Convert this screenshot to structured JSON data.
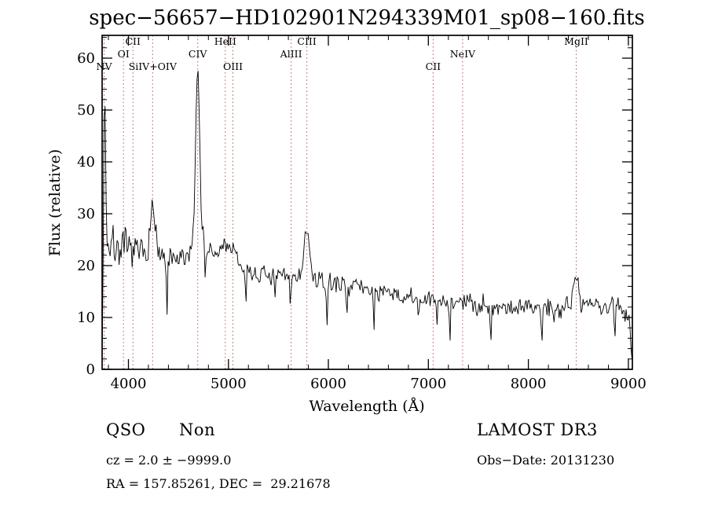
{
  "title": "spec−56657−HD102901N294339M01_sp08−160.fits",
  "annotations": {
    "object_class": "QSO",
    "object_subclass": "Non",
    "survey": "LAMOST DR3",
    "cz_line": "cz = 2.0 ± −9999.0",
    "obs_date": "Obs−Date: 20131230",
    "radec_line": "RA = 157.85261, DEC =  29.21678"
  },
  "chart_data": {
    "type": "line",
    "title": "spec−56657−HD102901N294339M01_sp08−160.fits",
    "xlabel": "Wavelength (Å)",
    "ylabel": "Flux (relative)",
    "xlim": [
      3737,
      9040
    ],
    "ylim": [
      0,
      64.4
    ],
    "x_ticks": [
      4000,
      5000,
      6000,
      7000,
      8000,
      9000
    ],
    "y_ticks": [
      0,
      10,
      20,
      30,
      40,
      50,
      60
    ],
    "x_minor_step": 200,
    "y_minor_step": 2,
    "grid": false,
    "legend": false,
    "line_color": "#000000",
    "marker_color": "#aa5f55",
    "emission_lines": [
      {
        "label": "NV",
        "wavelength": 3757,
        "row": 2
      },
      {
        "label": "OI",
        "wavelength": 3951,
        "row": 1
      },
      {
        "label": "CII",
        "wavelength": 4045,
        "row": 0
      },
      {
        "label": "SiIV+OIV",
        "wavelength": 4242,
        "row": 2
      },
      {
        "label": "CIV",
        "wavelength": 4693,
        "row": 1
      },
      {
        "label": "HeII",
        "wavelength": 4969,
        "row": 0
      },
      {
        "label": "OIII",
        "wavelength": 5045,
        "row": 2
      },
      {
        "label": "AlIII",
        "wavelength": 5627,
        "row": 1
      },
      {
        "label": "CIII",
        "wavelength": 5784,
        "row": 0
      },
      {
        "label": "CII",
        "wavelength": 7048,
        "row": 2
      },
      {
        "label": "NeIV",
        "wavelength": 7342,
        "row": 1
      },
      {
        "label": "MgII",
        "wavelength": 8478,
        "row": 0
      }
    ],
    "spectrum_model": {
      "seed": 7,
      "step": 10,
      "continuum": [
        [
          3737,
          3
        ],
        [
          3748,
          14
        ],
        [
          3760,
          25
        ],
        [
          3800,
          24
        ],
        [
          3900,
          23.5
        ],
        [
          4000,
          23
        ],
        [
          4100,
          22.5
        ],
        [
          4200,
          22
        ],
        [
          4350,
          21
        ],
        [
          4500,
          21
        ],
        [
          4650,
          21
        ],
        [
          4800,
          22
        ],
        [
          4900,
          22
        ],
        [
          5000,
          21.5
        ],
        [
          5100,
          20
        ],
        [
          5250,
          18.5
        ],
        [
          5400,
          18
        ],
        [
          5600,
          18
        ],
        [
          5750,
          18
        ],
        [
          5900,
          17
        ],
        [
          6100,
          16.5
        ],
        [
          6300,
          16
        ],
        [
          6500,
          15
        ],
        [
          6700,
          14
        ],
        [
          6900,
          13.5
        ],
        [
          7100,
          13.2
        ],
        [
          7300,
          13
        ],
        [
          7500,
          12.5
        ],
        [
          7700,
          12
        ],
        [
          7900,
          12
        ],
        [
          8100,
          12
        ],
        [
          8300,
          12.2
        ],
        [
          8450,
          12.7
        ],
        [
          8600,
          12.5
        ],
        [
          8800,
          12
        ],
        [
          8950,
          12
        ],
        [
          9000,
          10
        ],
        [
          9040,
          3
        ]
      ],
      "peaks": [
        {
          "center": 3762,
          "amp": 32,
          "sigma": 9
        },
        {
          "center": 4242,
          "amp": 9,
          "sigma": 28
        },
        {
          "center": 4693,
          "amp": 31,
          "sigma": 19
        },
        {
          "center": 4693,
          "amp": 6,
          "sigma": 55
        },
        {
          "center": 4969,
          "amp": 2.5,
          "sigma": 35
        },
        {
          "center": 5045,
          "amp": 2,
          "sigma": 28
        },
        {
          "center": 5784,
          "amp": 9,
          "sigma": 26
        },
        {
          "center": 8478,
          "amp": 6,
          "sigma": 22
        }
      ],
      "dips": [
        {
          "center": 4385,
          "depth": 10,
          "sigma": 6
        },
        {
          "center": 4770,
          "depth": 7,
          "sigma": 5
        },
        {
          "center": 5175,
          "depth": 5,
          "sigma": 6
        },
        {
          "center": 5465,
          "depth": 6,
          "sigma": 6
        },
        {
          "center": 5620,
          "depth": 6,
          "sigma": 5
        },
        {
          "center": 5985,
          "depth": 9,
          "sigma": 6
        },
        {
          "center": 6185,
          "depth": 5,
          "sigma": 5
        },
        {
          "center": 6455,
          "depth": 8,
          "sigma": 5
        },
        {
          "center": 6900,
          "depth": 5,
          "sigma": 5
        },
        {
          "center": 7085,
          "depth": 6,
          "sigma": 5
        },
        {
          "center": 7215,
          "depth": 7,
          "sigma": 5
        },
        {
          "center": 7625,
          "depth": 6,
          "sigma": 5
        },
        {
          "center": 8135,
          "depth": 7,
          "sigma": 5
        },
        {
          "center": 8255,
          "depth": 5,
          "sigma": 5
        },
        {
          "center": 8865,
          "depth": 6,
          "sigma": 5
        }
      ],
      "noise_amp": [
        [
          3737,
          2.2
        ],
        [
          4300,
          1.2
        ],
        [
          4700,
          1.0
        ],
        [
          5200,
          0.9
        ],
        [
          6000,
          0.85
        ],
        [
          7000,
          0.9
        ],
        [
          8000,
          1.0
        ],
        [
          9040,
          1.3
        ]
      ]
    }
  }
}
